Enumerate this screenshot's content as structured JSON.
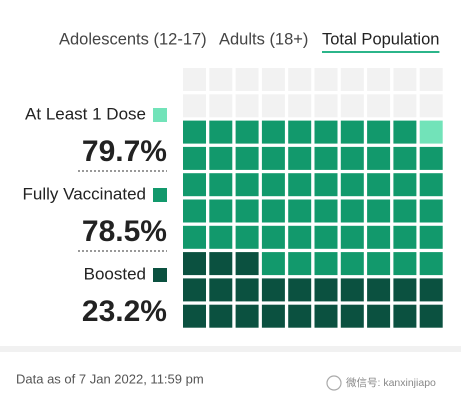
{
  "tabs": [
    "Adolescents (12-17)",
    "Adults (18+)",
    "Total Population"
  ],
  "active_tab": "Total Population",
  "chart_data": {
    "type": "waffle",
    "categories": [
      "At Least 1 Dose",
      "Fully Vaccinated",
      "Boosted"
    ],
    "values": [
      79.7,
      78.5,
      23.2
    ],
    "value_labels": [
      "79.7%",
      "78.5%",
      "23.2%"
    ],
    "colors": [
      "#72e3b9",
      "#12996c",
      "#0b5140"
    ],
    "empty_color": "#f2f2f2",
    "grid_size": [
      10,
      10
    ]
  },
  "footer": "Data as of 7 Jan 2022, 11:59 pm",
  "watermark": "微信号: kanxinjiapo"
}
